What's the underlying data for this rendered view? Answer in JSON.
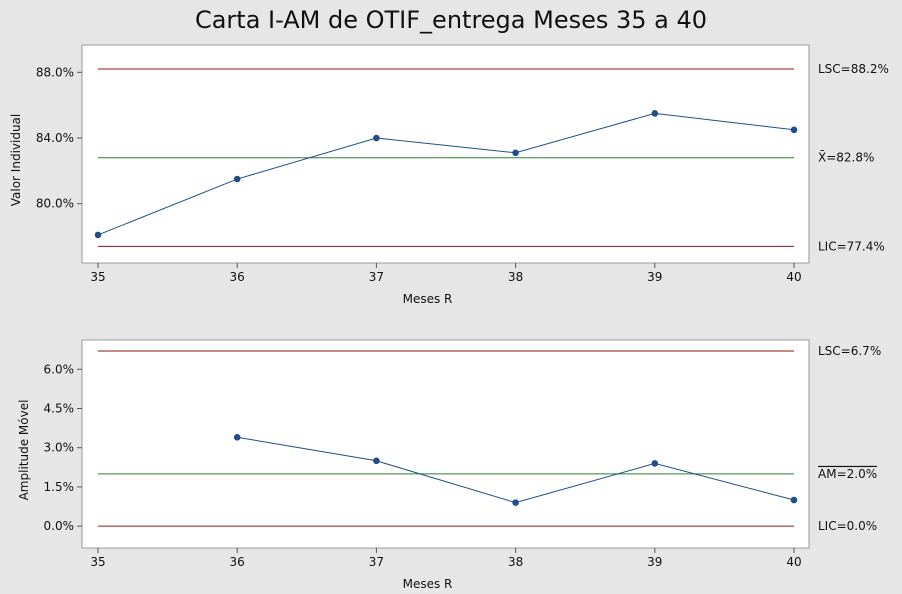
{
  "title": "Carta I-AM de OTIF_entrega Meses 35 a 40",
  "colors": {
    "series": "#1f4e8c",
    "center": "#2e7d32",
    "limit": "#8b1a1a",
    "background": "#e6e6e6"
  },
  "chart_data": [
    {
      "type": "line",
      "name": "individual",
      "xlabel": "Meses R",
      "ylabel": "Valor Individual",
      "x": [
        35,
        36,
        37,
        38,
        39,
        40
      ],
      "values": [
        78.1,
        81.5,
        84.0,
        83.1,
        85.5,
        84.5
      ],
      "xlim": [
        35,
        40
      ],
      "ylim": [
        77.0,
        88.2
      ],
      "yticks": [
        80.0,
        84.0,
        88.0
      ],
      "ytick_labels": [
        "80.0%",
        "84.0%",
        "88.0%"
      ],
      "xtick_labels": [
        "35",
        "36",
        "37",
        "38",
        "39",
        "40"
      ],
      "ucl": 88.2,
      "center": 82.8,
      "lcl": 77.4,
      "ucl_label": "LSC=88.2%",
      "center_label": "X̄=82.8%",
      "lcl_label": "LIC=77.4%"
    },
    {
      "type": "line",
      "name": "moving-range",
      "xlabel": "Meses R",
      "ylabel": "Amplitude Móvel",
      "x": [
        36,
        37,
        38,
        39,
        40
      ],
      "values": [
        3.4,
        2.5,
        0.9,
        2.4,
        1.0
      ],
      "xlim": [
        35,
        40
      ],
      "ylim": [
        -0.3,
        6.7
      ],
      "yticks": [
        0.0,
        1.5,
        3.0,
        4.5,
        6.0
      ],
      "ytick_labels": [
        "0.0%",
        "1.5%",
        "3.0%",
        "4.5%",
        "6.0%"
      ],
      "xtick_labels": [
        "35",
        "36",
        "37",
        "38",
        "39",
        "40"
      ],
      "ucl": 6.7,
      "center": 2.0,
      "lcl": 0.0,
      "ucl_label": "LSC=6.7%",
      "center_label": "AM=2.0%",
      "center_overline": true,
      "lcl_label": "LIC=0.0%"
    }
  ]
}
